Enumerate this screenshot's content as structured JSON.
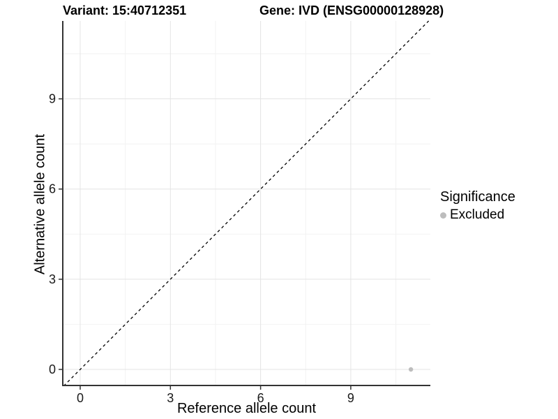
{
  "header": {
    "variant_title": "Variant: 15:40712351",
    "gene_title": "Gene: IVD (ENSG00000128928)"
  },
  "chart_data": {
    "type": "scatter",
    "xlabel": "Reference allele count",
    "ylabel": "Alternative allele count",
    "x_ticks": [
      0,
      3,
      6,
      9
    ],
    "y_ticks": [
      0,
      3,
      6,
      9
    ],
    "x_minor_gridlines": [
      1.5,
      4.5,
      7.5,
      10.5
    ],
    "y_minor_gridlines": [
      1.5,
      4.5,
      7.5,
      10.5
    ],
    "xlim": [
      -0.55,
      11.65
    ],
    "ylim": [
      -0.55,
      11.6
    ],
    "grid": "major+minor",
    "legend_position": "right",
    "series": [
      {
        "name": "Excluded",
        "marker": "circle",
        "color": "#bdbdbd",
        "points": [
          {
            "x": 11,
            "y": 0
          }
        ]
      }
    ],
    "reference_line": {
      "type": "identity",
      "equation": "y = x",
      "style": "dashed",
      "color": "#000000"
    },
    "legend": {
      "title": "Significance",
      "entries": [
        {
          "label": "Excluded",
          "color": "#bdbdbd",
          "marker": "circle"
        }
      ]
    }
  },
  "colors": {
    "background": "#ffffff",
    "axis": "#333333",
    "tick": "#333333",
    "grid_major": "#e4e4e4",
    "grid_minor": "#f2f2f2",
    "tick_label": "#1a1a1a",
    "point": "#bdbdbd"
  }
}
